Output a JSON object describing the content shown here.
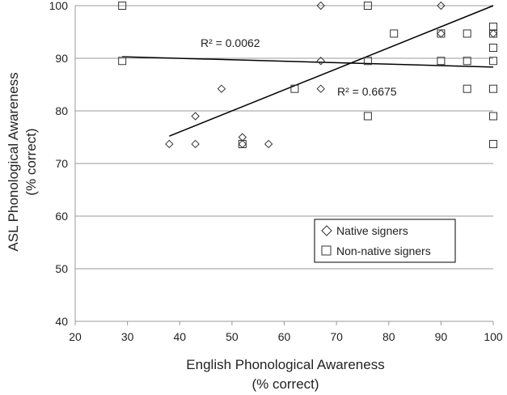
{
  "chart_data": {
    "type": "scatter",
    "xlabel": [
      "English Phonological Awareness",
      "(% correct)"
    ],
    "ylabel": [
      "ASL Phonological Awareness",
      "(% correct)"
    ],
    "xlim": [
      20,
      100
    ],
    "ylim": [
      40,
      100
    ],
    "xticks": [
      "20",
      "30",
      "40",
      "50",
      "60",
      "70",
      "80",
      "90",
      "100"
    ],
    "yticks": [
      "40",
      "50",
      "60",
      "70",
      "80",
      "90",
      "100"
    ],
    "grid": "horizontal",
    "legend_placement": "bottom-right",
    "series": [
      {
        "name": "Native signers",
        "marker": "diamond",
        "points": [
          [
            38,
            73.7
          ],
          [
            43,
            79
          ],
          [
            43,
            73.7
          ],
          [
            48,
            84.2
          ],
          [
            52,
            75
          ],
          [
            52,
            73.7
          ],
          [
            57,
            73.7
          ],
          [
            67,
            100
          ],
          [
            67,
            89.5
          ],
          [
            67,
            84.2
          ],
          [
            90,
            100
          ],
          [
            90,
            94.7
          ],
          [
            100,
            94.7
          ]
        ],
        "trendline": {
          "slope": 0.4,
          "intercept": 60,
          "x_range": [
            38,
            100
          ],
          "r2_label": "R² = 0.6675"
        }
      },
      {
        "name": "Non-native signers",
        "marker": "square",
        "points": [
          [
            29,
            100
          ],
          [
            29,
            89.5
          ],
          [
            52,
            73.7
          ],
          [
            62,
            84.2
          ],
          [
            76,
            100
          ],
          [
            76,
            89.5
          ],
          [
            76,
            79
          ],
          [
            81,
            94.7
          ],
          [
            90,
            94.7
          ],
          [
            90,
            89.5
          ],
          [
            95,
            94.7
          ],
          [
            95,
            89.5
          ],
          [
            95,
            84.2
          ],
          [
            100,
            96
          ],
          [
            100,
            94.7
          ],
          [
            100,
            92
          ],
          [
            100,
            89.5
          ],
          [
            100,
            84.2
          ],
          [
            100,
            79
          ],
          [
            100,
            73.7
          ]
        ],
        "trendline": {
          "slope": -0.0277,
          "intercept": 91.1,
          "x_range": [
            29,
            100
          ],
          "r2_label": "R² = 0.0062"
        }
      }
    ]
  },
  "colors": {
    "marker": "#333333",
    "grid": "#9a9a9a",
    "axis": "#9a9a9a",
    "trend": "#000000"
  }
}
